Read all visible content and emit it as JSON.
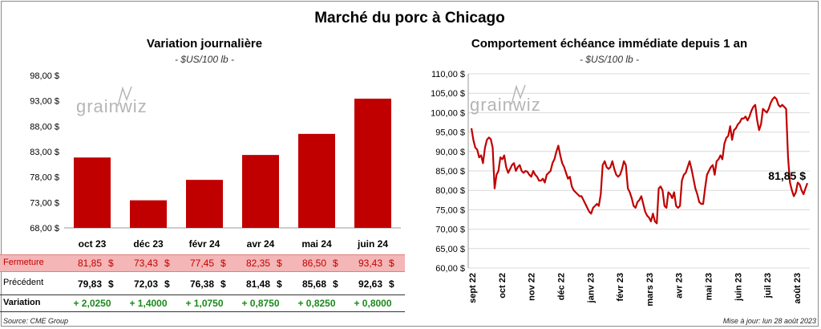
{
  "title": "Marché du porc à Chicago",
  "left": {
    "title": "Variation  journalière",
    "unit": "- $US/100 lb -",
    "watermark": "grainwiz"
  },
  "right": {
    "title": "Comportement  échéance immédiate depuis 1 an",
    "unit": "- $US/100 lb -",
    "watermark": "grainwiz",
    "last_label": "81,85 $"
  },
  "table": {
    "close_label": "Fermeture",
    "close_values": [
      "81,85",
      "73,43",
      "77,45",
      "82,35",
      "86,50",
      "93,43"
    ],
    "prev_label": "Précédent",
    "prev_values": [
      "79,83",
      "72,03",
      "76,38",
      "81,48",
      "85,68",
      "92,63"
    ],
    "var_label": "Variation",
    "var_values": [
      "+ 2,0250",
      "+ 1,4000",
      "+ 1,0750",
      "+ 0,8750",
      "+ 0,8250",
      "+ 0,8000"
    ],
    "currency": "$"
  },
  "footer": {
    "source": "Source: CME Group",
    "updated": "Mise à jour: lun 28 août 2023"
  },
  "colors": {
    "bar": "#c00000",
    "line": "#c00000",
    "close_row_bg": "#f4b6b6",
    "variation": "#1a8a1a"
  },
  "chart_data": [
    {
      "type": "bar",
      "categories": [
        "oct 23",
        "déc 23",
        "févr 24",
        "avr 24",
        "mai 24",
        "juin 24"
      ],
      "values": [
        81.85,
        73.43,
        77.45,
        82.35,
        86.5,
        93.43
      ],
      "ylim": [
        68,
        98
      ],
      "yticks": [
        68,
        73,
        78,
        83,
        88,
        93,
        98
      ],
      "ytick_labels": [
        "68,00 $",
        "73,00 $",
        "78,00 $",
        "83,00 $",
        "88,00 $",
        "93,00 $",
        "98,00 $"
      ],
      "grid": false
    },
    {
      "type": "line",
      "x_labels": [
        "sept 22",
        "oct 22",
        "nov 22",
        "déc 22",
        "janv 23",
        "févr 23",
        "mars 23",
        "avr 23",
        "mai 23",
        "juin 23",
        "juil 23",
        "août 23"
      ],
      "ylim": [
        60,
        110
      ],
      "yticks": [
        60,
        65,
        70,
        75,
        80,
        85,
        90,
        95,
        100,
        105,
        110
      ],
      "ytick_labels": [
        "60,00 $",
        "65,00 $",
        "70,00 $",
        "75,00 $",
        "80,00 $",
        "85,00 $",
        "90,00 $",
        "95,00 $",
        "100,00 $",
        "105,00 $",
        "110,00 $"
      ],
      "grid": "horizontal",
      "values": [
        96.0,
        93.0,
        91.0,
        90.5,
        88.5,
        89.0,
        87.0,
        91.0,
        93.0,
        93.6,
        93.2,
        91.0,
        80.5,
        84.0,
        85.0,
        88.5,
        88.0,
        89.0,
        86.0,
        84.5,
        85.5,
        86.5,
        87.0,
        85.0,
        86.0,
        86.5,
        85.0,
        84.5,
        85.0,
        84.8,
        84.0,
        83.5,
        85.0,
        84.0,
        83.5,
        82.5,
        82.5,
        83.0,
        82.0,
        84.0,
        84.5,
        85.0,
        87.0,
        88.0,
        90.0,
        91.5,
        89.0,
        87.0,
        86.0,
        84.5,
        83.0,
        83.5,
        81.0,
        80.0,
        79.5,
        79.0,
        78.5,
        78.5,
        77.5,
        76.5,
        75.5,
        74.5,
        74.0,
        75.5,
        76.0,
        76.5,
        76.0,
        79.0,
        86.5,
        87.5,
        86.0,
        85.5,
        86.0,
        87.5,
        85.5,
        84.0,
        83.5,
        84.0,
        85.5,
        87.5,
        86.5,
        80.5,
        79.5,
        78.0,
        76.0,
        75.5,
        77.0,
        77.5,
        78.5,
        76.5,
        74.5,
        73.5,
        73.0,
        72.0,
        74.0,
        72.0,
        71.5,
        80.5,
        81.0,
        80.0,
        76.0,
        75.5,
        79.5,
        79.0,
        78.0,
        79.5,
        76.0,
        75.5,
        76.0,
        82.5,
        84.0,
        84.5,
        86.0,
        87.5,
        85.5,
        83.0,
        80.5,
        79.0,
        77.0,
        76.5,
        76.5,
        80.5,
        84.0,
        85.0,
        86.0,
        86.5,
        84.0,
        87.5,
        88.0,
        89.0,
        88.0,
        92.0,
        93.5,
        94.0,
        96.5,
        93.0,
        95.5,
        96.0,
        97.0,
        97.5,
        98.5,
        98.5,
        99.0,
        98.0,
        99.0,
        100.5,
        101.5,
        102.0,
        98.0,
        95.5,
        97.0,
        101.0,
        100.5,
        100.0,
        101.0,
        102.5,
        103.5,
        104.0,
        103.5,
        102.0,
        101.5,
        102.0,
        101.5,
        101.0,
        88.5,
        82.0,
        80.0,
        78.5,
        79.5,
        82.0,
        81.5,
        80.0,
        79.0,
        80.5,
        81.85
      ]
    }
  ]
}
